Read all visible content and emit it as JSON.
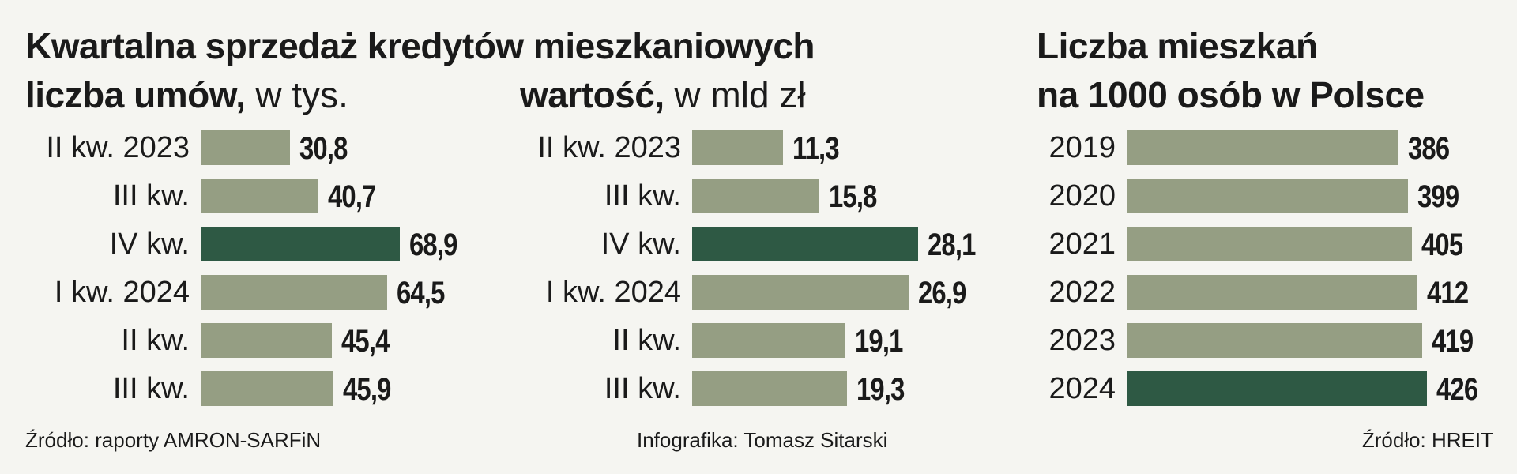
{
  "colors": {
    "bar": "#959e83",
    "highlight": "#2e5944",
    "background": "#f5f5f1",
    "text": "#1a1a1a"
  },
  "header": {
    "main_title": "Kwartalna sprzedaż kredytów mieszkaniowych",
    "right_title_line1": "Liczba mieszkań",
    "right_title_line2": "na 1000 osób w Polsce"
  },
  "chart_data": [
    {
      "type": "bar",
      "orientation": "horizontal",
      "title_bold": "liczba umów,",
      "title_unit": " w tys.",
      "categories": [
        "II kw. 2023",
        "III kw.",
        "IV kw.",
        "I kw. 2024",
        "II kw.",
        "III kw."
      ],
      "values": [
        30.8,
        40.7,
        68.9,
        64.5,
        45.4,
        45.9
      ],
      "value_labels": [
        "30,8",
        "40,7",
        "68,9",
        "64,5",
        "45,4",
        "45,9"
      ],
      "highlight_index": 2,
      "xlim": [
        0,
        68.9
      ]
    },
    {
      "type": "bar",
      "orientation": "horizontal",
      "title_bold": "wartość,",
      "title_unit": " w mld zł",
      "categories": [
        "II kw. 2023",
        "III kw.",
        "IV kw.",
        "I kw. 2024",
        "II kw.",
        "III kw."
      ],
      "values": [
        11.3,
        15.8,
        28.1,
        26.9,
        19.1,
        19.3
      ],
      "value_labels": [
        "11,3",
        "15,8",
        "28,1",
        "26,9",
        "19,1",
        "19,3"
      ],
      "highlight_index": 2,
      "xlim": [
        0,
        28.1
      ]
    },
    {
      "type": "bar",
      "orientation": "horizontal",
      "categories": [
        "2019",
        "2020",
        "2021",
        "2022",
        "2023",
        "2024"
      ],
      "values": [
        386,
        399,
        405,
        412,
        419,
        426
      ],
      "value_labels": [
        "386",
        "399",
        "405",
        "412",
        "419",
        "426"
      ],
      "highlight_index": 5,
      "xlim": [
        0,
        426
      ]
    }
  ],
  "footer": {
    "source_left": "Źródło: raporty AMRON-SARFiN",
    "credit": "Infografika: Tomasz Sitarski",
    "source_right": "Źródło: HREIT"
  }
}
